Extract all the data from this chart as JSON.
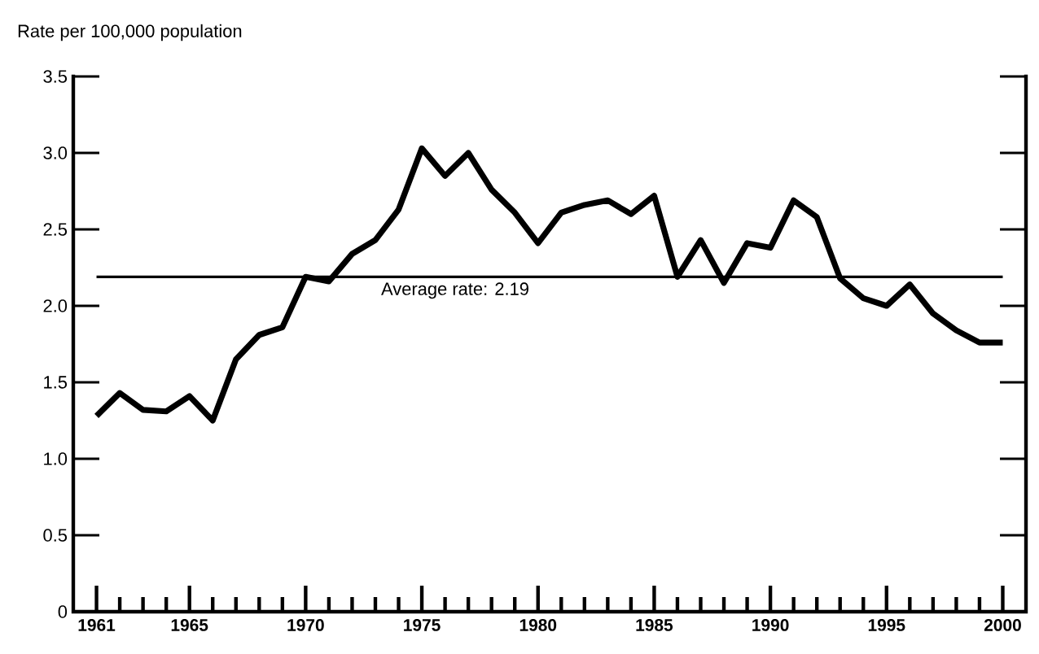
{
  "chart_data": {
    "type": "line",
    "ylabel": "Rate per 100,000 population",
    "x": [
      1961,
      1962,
      1963,
      1964,
      1965,
      1966,
      1967,
      1968,
      1969,
      1970,
      1971,
      1972,
      1973,
      1974,
      1975,
      1976,
      1977,
      1978,
      1979,
      1980,
      1981,
      1982,
      1983,
      1984,
      1985,
      1986,
      1987,
      1988,
      1989,
      1990,
      1991,
      1992,
      1993,
      1994,
      1995,
      1996,
      1997,
      1998,
      1999,
      2000
    ],
    "series": [
      {
        "color": "#000000",
        "values": [
          1.28,
          1.43,
          1.32,
          1.31,
          1.41,
          1.25,
          1.65,
          1.81,
          1.86,
          2.19,
          2.16,
          2.34,
          2.43,
          2.63,
          3.03,
          2.85,
          3.0,
          2.76,
          2.61,
          2.41,
          2.61,
          2.66,
          2.69,
          2.6,
          2.72,
          2.19,
          2.43,
          2.15,
          2.41,
          2.38,
          2.69,
          2.58,
          2.18,
          2.05,
          2.0,
          2.14,
          1.95,
          1.84,
          1.76,
          1.76
        ]
      }
    ],
    "xlim": [
      1960,
      2001
    ],
    "ylim": [
      0,
      3.5
    ],
    "xticks": [
      1961,
      {
        "value": 1962,
        "label": null
      },
      {
        "value": 1963,
        "label": null
      },
      {
        "value": 1964,
        "label": null
      },
      1965,
      {
        "value": 1966,
        "label": null
      },
      {
        "value": 1967,
        "label": null
      },
      {
        "value": 1968,
        "label": null
      },
      {
        "value": 1969,
        "label": null
      },
      1970,
      {
        "value": 1971,
        "label": null
      },
      {
        "value": 1972,
        "label": null
      },
      {
        "value": 1973,
        "label": null
      },
      {
        "value": 1974,
        "label": null
      },
      1975,
      {
        "value": 1976,
        "label": null
      },
      {
        "value": 1977,
        "label": null
      },
      {
        "value": 1978,
        "label": null
      },
      {
        "value": 1979,
        "label": null
      },
      1980,
      {
        "value": 1981,
        "label": null
      },
      {
        "value": 1982,
        "label": null
      },
      {
        "value": 1983,
        "label": null
      },
      {
        "value": 1984,
        "label": null
      },
      1985,
      {
        "value": 1986,
        "label": null
      },
      {
        "value": 1987,
        "label": null
      },
      {
        "value": 1988,
        "label": null
      },
      {
        "value": 1989,
        "label": null
      },
      1990,
      {
        "value": 1991,
        "label": null
      },
      {
        "value": 1992,
        "label": null
      },
      {
        "value": 1993,
        "label": null
      },
      {
        "value": 1994,
        "label": null
      },
      1995,
      {
        "value": 1996,
        "label": null
      },
      {
        "value": 1997,
        "label": null
      },
      {
        "value": 1998,
        "label": null
      },
      {
        "value": 1999,
        "label": null
      },
      2000
    ],
    "yticks": [
      {
        "value": 0,
        "label": "0"
      },
      {
        "value": 0.5,
        "label": "0.5"
      },
      {
        "value": 1,
        "label": "1.0"
      },
      {
        "value": 1.5,
        "label": "1.5"
      },
      {
        "value": 2,
        "label": "2.0"
      },
      {
        "value": 2.5,
        "label": "2.5"
      },
      {
        "value": 3,
        "label": "3.0"
      },
      {
        "value": 3.5,
        "label": "3.5"
      }
    ],
    "ref_lines": [
      {
        "axis": "y",
        "value": 2.19,
        "label": "Average rate: 2.19",
        "color": "#000000"
      }
    ],
    "marker": "none",
    "line_style": "solid"
  }
}
